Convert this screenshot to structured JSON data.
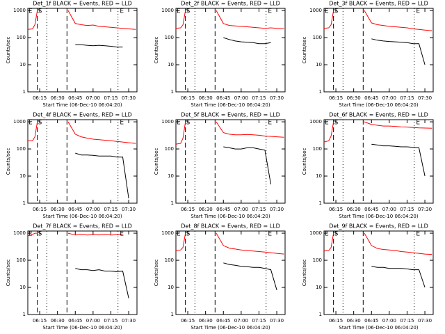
{
  "chart_data": [
    {
      "type": "line",
      "title": "Det_1f BLACK = Events, RED = LLD",
      "xlabel": "Start Time (06-Dec-10 06:04:20)",
      "ylabel": "Counts/sec",
      "log_y": true,
      "x": [
        "06:05",
        "06:09",
        "06:11",
        "06:13",
        "06:38",
        "06:39",
        "06:45",
        "06:50",
        "06:55",
        "07:00",
        "07:05",
        "07:10",
        "07:15",
        "07:20",
        "07:25",
        "07:30",
        "07:36"
      ],
      "xlim": [
        "06:05",
        "07:37"
      ],
      "xticks": [
        "06:15",
        "06:30",
        "06:45",
        "07:00",
        "07:15",
        "07:30"
      ],
      "ylim": [
        1,
        1200
      ],
      "yticks": [
        1,
        10,
        100,
        1000
      ],
      "vlines": [
        {
          "x": "06:13",
          "style": "dashed"
        },
        {
          "x": "06:21",
          "style": "dotted"
        },
        {
          "x": "06:38",
          "style": "dashed"
        },
        {
          "x": "07:21",
          "style": "dotted"
        }
      ],
      "annotations": [
        {
          "text": "E",
          "x": "06:05"
        },
        {
          "text": "S",
          "x": "06:13"
        },
        {
          "text": "E",
          "x": "07:22"
        }
      ],
      "series": [
        {
          "color": "#ff0000",
          "values": [
            200,
            210,
            300,
            1000,
            null,
            1000,
            330,
            300,
            280,
            290,
            260,
            250,
            240,
            230,
            220,
            210,
            200
          ]
        },
        {
          "color": "#000000",
          "values": [
            null,
            null,
            null,
            null,
            null,
            null,
            55,
            55,
            52,
            50,
            52,
            50,
            48,
            45,
            45,
            null,
            null
          ]
        }
      ]
    },
    {
      "type": "line",
      "title": "Det_2f BLACK = Events, RED = LLD",
      "xlabel": "Start Time (06-Dec-10 06:04:20)",
      "ylabel": "Counts/sec",
      "log_y": true,
      "x": [
        "06:05",
        "06:09",
        "06:11",
        "06:13",
        "06:38",
        "06:39",
        "06:45",
        "06:50",
        "06:55",
        "07:00",
        "07:05",
        "07:10",
        "07:15",
        "07:20",
        "07:25",
        "07:30",
        "07:36"
      ],
      "xlim": [
        "06:05",
        "07:37"
      ],
      "xticks": [
        "06:15",
        "06:30",
        "06:45",
        "07:00",
        "07:15",
        "07:30"
      ],
      "ylim": [
        1,
        1200
      ],
      "yticks": [
        1,
        10,
        100,
        1000
      ],
      "vlines": [
        {
          "x": "06:13",
          "style": "dashed"
        },
        {
          "x": "06:21",
          "style": "dotted"
        },
        {
          "x": "06:38",
          "style": "dashed"
        },
        {
          "x": "07:21",
          "style": "dotted"
        }
      ],
      "annotations": [
        {
          "text": "E",
          "x": "06:05"
        },
        {
          "text": "S",
          "x": "06:13"
        },
        {
          "text": "E",
          "x": "07:22"
        }
      ],
      "series": [
        {
          "color": "#ff0000",
          "values": [
            220,
            230,
            300,
            1000,
            null,
            1000,
            330,
            280,
            270,
            260,
            250,
            240,
            230,
            220,
            230,
            220,
            210
          ]
        },
        {
          "color": "#000000",
          "values": [
            null,
            null,
            null,
            null,
            null,
            null,
            100,
            85,
            75,
            70,
            68,
            65,
            60,
            60,
            65,
            null,
            null
          ]
        }
      ]
    },
    {
      "type": "line",
      "title": "Det_3f BLACK = Events, RED = LLD",
      "xlabel": "Start Time (06-Dec-10 06:04:20)",
      "ylabel": "Counts/sec",
      "log_y": true,
      "x": [
        "06:05",
        "06:09",
        "06:11",
        "06:13",
        "06:38",
        "06:39",
        "06:45",
        "06:50",
        "06:55",
        "07:00",
        "07:05",
        "07:10",
        "07:15",
        "07:20",
        "07:25",
        "07:30",
        "07:36"
      ],
      "xlim": [
        "06:05",
        "07:37"
      ],
      "xticks": [
        "06:15",
        "06:30",
        "06:45",
        "07:00",
        "07:15",
        "07:30"
      ],
      "ylim": [
        1,
        1200
      ],
      "yticks": [
        1,
        10,
        100,
        1000
      ],
      "vlines": [
        {
          "x": "06:13",
          "style": "dashed"
        },
        {
          "x": "06:21",
          "style": "dotted"
        },
        {
          "x": "06:38",
          "style": "dashed"
        },
        {
          "x": "07:21",
          "style": "dotted"
        }
      ],
      "annotations": [
        {
          "text": "E",
          "x": "06:05"
        },
        {
          "text": "S",
          "x": "06:13"
        },
        {
          "text": "E",
          "x": "07:22"
        }
      ],
      "series": [
        {
          "color": "#ff0000",
          "values": [
            220,
            230,
            300,
            1000,
            null,
            1000,
            350,
            300,
            280,
            260,
            250,
            240,
            230,
            210,
            200,
            190,
            180
          ]
        },
        {
          "color": "#000000",
          "values": [
            null,
            null,
            null,
            null,
            null,
            null,
            90,
            80,
            75,
            72,
            70,
            68,
            65,
            60,
            60,
            10,
            null
          ]
        }
      ]
    },
    {
      "type": "line",
      "title": "Det_4f BLACK = Events, RED = LLD",
      "xlabel": "Start Time (06-Dec-10 06:04:20)",
      "ylabel": "Counts/sec",
      "log_y": true,
      "x": [
        "06:05",
        "06:09",
        "06:11",
        "06:13",
        "06:38",
        "06:39",
        "06:45",
        "06:50",
        "06:55",
        "07:00",
        "07:05",
        "07:10",
        "07:15",
        "07:20",
        "07:25",
        "07:30",
        "07:36"
      ],
      "xlim": [
        "06:05",
        "07:37"
      ],
      "xticks": [
        "06:15",
        "06:30",
        "06:45",
        "07:00",
        "07:15",
        "07:30"
      ],
      "ylim": [
        1,
        1200
      ],
      "yticks": [
        1,
        10,
        100,
        1000
      ],
      "vlines": [
        {
          "x": "06:13",
          "style": "dashed"
        },
        {
          "x": "06:21",
          "style": "dotted"
        },
        {
          "x": "06:38",
          "style": "dashed"
        },
        {
          "x": "07:21",
          "style": "dotted"
        }
      ],
      "annotations": [
        {
          "text": "E",
          "x": "06:05"
        },
        {
          "text": "S",
          "x": "06:13"
        },
        {
          "text": "E",
          "x": "07:22"
        }
      ],
      "series": [
        {
          "color": "#ff0000",
          "values": [
            200,
            200,
            280,
            1000,
            null,
            1000,
            350,
            280,
            250,
            230,
            220,
            210,
            200,
            190,
            180,
            170,
            160
          ]
        },
        {
          "color": "#000000",
          "values": [
            null,
            null,
            null,
            null,
            null,
            null,
            70,
            60,
            60,
            58,
            55,
            55,
            55,
            50,
            50,
            1.5,
            null
          ]
        }
      ]
    },
    {
      "type": "line",
      "title": "Det_5f BLACK = Events, RED = LLD",
      "xlabel": "Start Time (06-Dec-10 06:04:20)",
      "ylabel": "Counts/sec",
      "log_y": true,
      "x": [
        "06:05",
        "06:09",
        "06:11",
        "06:13",
        "06:38",
        "06:39",
        "06:45",
        "06:50",
        "06:55",
        "07:00",
        "07:05",
        "07:10",
        "07:15",
        "07:20",
        "07:25",
        "07:30",
        "07:36"
      ],
      "xlim": [
        "06:05",
        "07:37"
      ],
      "xticks": [
        "06:15",
        "06:30",
        "06:45",
        "07:00",
        "07:15",
        "07:30"
      ],
      "ylim": [
        1,
        1200
      ],
      "yticks": [
        1,
        10,
        100,
        1000
      ],
      "vlines": [
        {
          "x": "06:13",
          "style": "dashed"
        },
        {
          "x": "06:21",
          "style": "dotted"
        },
        {
          "x": "06:38",
          "style": "dashed"
        },
        {
          "x": "07:21",
          "style": "dotted"
        }
      ],
      "annotations": [
        {
          "text": "E",
          "x": "06:05"
        },
        {
          "text": "S",
          "x": "06:13"
        },
        {
          "text": "E",
          "x": "07:22"
        }
      ],
      "series": [
        {
          "color": "#ff0000",
          "values": [
            150,
            160,
            250,
            1000,
            null,
            1000,
            400,
            350,
            330,
            330,
            340,
            330,
            320,
            300,
            290,
            280,
            270
          ]
        },
        {
          "color": "#000000",
          "values": [
            null,
            null,
            null,
            null,
            null,
            null,
            120,
            110,
            100,
            100,
            110,
            110,
            100,
            90,
            5,
            null,
            null
          ]
        }
      ]
    },
    {
      "type": "line",
      "title": "Det_6f BLACK = Events, RED = LLD",
      "xlabel": "Start Time (06-Dec-10 06:04:20)",
      "ylabel": "Counts/sec",
      "log_y": true,
      "x": [
        "06:05",
        "06:09",
        "06:11",
        "06:13",
        "06:38",
        "06:39",
        "06:45",
        "06:50",
        "06:55",
        "07:00",
        "07:05",
        "07:10",
        "07:15",
        "07:20",
        "07:25",
        "07:30",
        "07:36"
      ],
      "xlim": [
        "06:05",
        "07:37"
      ],
      "xticks": [
        "06:15",
        "06:30",
        "06:45",
        "07:00",
        "07:15",
        "07:30"
      ],
      "ylim": [
        1,
        1200
      ],
      "yticks": [
        1,
        10,
        100,
        1000
      ],
      "vlines": [
        {
          "x": "06:13",
          "style": "dashed"
        },
        {
          "x": "06:21",
          "style": "dotted"
        },
        {
          "x": "06:38",
          "style": "dashed"
        },
        {
          "x": "07:21",
          "style": "dotted"
        }
      ],
      "annotations": [
        {
          "text": "E",
          "x": "06:05"
        },
        {
          "text": "S",
          "x": "06:13"
        },
        {
          "text": "E",
          "x": "07:22"
        }
      ],
      "series": [
        {
          "color": "#ff0000",
          "values": [
            180,
            200,
            300,
            1000,
            null,
            1000,
            800,
            750,
            700,
            700,
            680,
            650,
            640,
            620,
            600,
            590,
            580
          ]
        },
        {
          "color": "#000000",
          "values": [
            null,
            null,
            null,
            null,
            null,
            null,
            150,
            140,
            130,
            130,
            125,
            120,
            120,
            115,
            110,
            10,
            null
          ]
        }
      ]
    },
    {
      "type": "line",
      "title": "Det_7f BLACK = Events, RED = LLD",
      "xlabel": "Start Time (06-Dec-10 06:04:20)",
      "ylabel": "Counts/sec",
      "log_y": true,
      "x": [
        "06:05",
        "06:09",
        "06:11",
        "06:13",
        "06:38",
        "06:39",
        "06:45",
        "06:50",
        "06:55",
        "07:00",
        "07:05",
        "07:10",
        "07:15",
        "07:20",
        "07:25",
        "07:30",
        "07:36"
      ],
      "xlim": [
        "06:05",
        "07:37"
      ],
      "xticks": [
        "06:15",
        "06:30",
        "06:45",
        "07:00",
        "07:15",
        "07:30"
      ],
      "ylim": [
        1,
        1200
      ],
      "yticks": [
        1,
        10,
        100,
        1000
      ],
      "vlines": [
        {
          "x": "06:13",
          "style": "dashed"
        },
        {
          "x": "06:21",
          "style": "dotted"
        },
        {
          "x": "06:38",
          "style": "dashed"
        },
        {
          "x": "07:21",
          "style": "dotted"
        }
      ],
      "annotations": [
        {
          "text": "E",
          "x": "06:05"
        },
        {
          "text": "S",
          "x": "06:13"
        },
        {
          "text": "E",
          "x": "07:22"
        }
      ],
      "series": [
        {
          "color": "#ff0000",
          "values": [
            800,
            900,
            1000,
            1000,
            null,
            1000,
            850,
            900,
            850,
            880,
            860,
            900,
            850,
            870,
            880,
            null,
            null
          ]
        },
        {
          "color": "#000000",
          "values": [
            null,
            null,
            null,
            null,
            null,
            null,
            50,
            45,
            45,
            42,
            45,
            40,
            40,
            38,
            40,
            4,
            null
          ]
        }
      ]
    },
    {
      "type": "line",
      "title": "Det_8f BLACK = Events, RED = LLD",
      "xlabel": "Start Time (06-Dec-10 06:04:20)",
      "ylabel": "Counts/sec",
      "log_y": true,
      "x": [
        "06:05",
        "06:09",
        "06:11",
        "06:13",
        "06:38",
        "06:39",
        "06:45",
        "06:50",
        "06:55",
        "07:00",
        "07:05",
        "07:10",
        "07:15",
        "07:20",
        "07:25",
        "07:30",
        "07:36"
      ],
      "xlim": [
        "06:05",
        "07:37"
      ],
      "xticks": [
        "06:15",
        "06:30",
        "06:45",
        "07:00",
        "07:15",
        "07:30"
      ],
      "ylim": [
        1,
        1200
      ],
      "yticks": [
        1,
        10,
        100,
        1000
      ],
      "vlines": [
        {
          "x": "06:13",
          "style": "dashed"
        },
        {
          "x": "06:21",
          "style": "dotted"
        },
        {
          "x": "06:38",
          "style": "dashed"
        },
        {
          "x": "07:21",
          "style": "dotted"
        }
      ],
      "annotations": [
        {
          "text": "E",
          "x": "06:05"
        },
        {
          "text": "S",
          "x": "06:13"
        },
        {
          "text": "E",
          "x": "07:22"
        }
      ],
      "series": [
        {
          "color": "#ff0000",
          "values": [
            230,
            240,
            300,
            1000,
            null,
            1000,
            350,
            280,
            260,
            240,
            230,
            220,
            210,
            200,
            190,
            180,
            170
          ]
        },
        {
          "color": "#000000",
          "values": [
            null,
            null,
            null,
            null,
            null,
            null,
            80,
            70,
            65,
            60,
            58,
            55,
            55,
            50,
            45,
            8,
            null
          ]
        }
      ]
    },
    {
      "type": "line",
      "title": "Det_9f BLACK = Events, RED = LLD",
      "xlabel": "Start Time (06-Dec-10 06:04:20)",
      "ylabel": "Counts/sec",
      "log_y": true,
      "x": [
        "06:05",
        "06:09",
        "06:11",
        "06:13",
        "06:38",
        "06:39",
        "06:45",
        "06:50",
        "06:55",
        "07:00",
        "07:05",
        "07:10",
        "07:15",
        "07:20",
        "07:25",
        "07:30",
        "07:36"
      ],
      "xlim": [
        "06:05",
        "07:37"
      ],
      "xticks": [
        "06:15",
        "06:30",
        "06:45",
        "07:00",
        "07:15",
        "07:30"
      ],
      "ylim": [
        1,
        1200
      ],
      "yticks": [
        1,
        10,
        100,
        1000
      ],
      "vlines": [
        {
          "x": "06:13",
          "style": "dashed"
        },
        {
          "x": "06:21",
          "style": "dotted"
        },
        {
          "x": "06:38",
          "style": "dashed"
        },
        {
          "x": "07:21",
          "style": "dotted"
        }
      ],
      "annotations": [
        {
          "text": "E",
          "x": "06:05"
        },
        {
          "text": "S",
          "x": "06:13"
        },
        {
          "text": "E",
          "x": "07:22"
        }
      ],
      "series": [
        {
          "color": "#ff0000",
          "values": [
            220,
            230,
            300,
            1000,
            null,
            1000,
            350,
            270,
            250,
            240,
            230,
            210,
            200,
            190,
            180,
            170,
            165
          ]
        },
        {
          "color": "#000000",
          "values": [
            null,
            null,
            null,
            null,
            null,
            null,
            60,
            55,
            55,
            50,
            50,
            50,
            48,
            45,
            45,
            10,
            null
          ]
        }
      ]
    }
  ]
}
